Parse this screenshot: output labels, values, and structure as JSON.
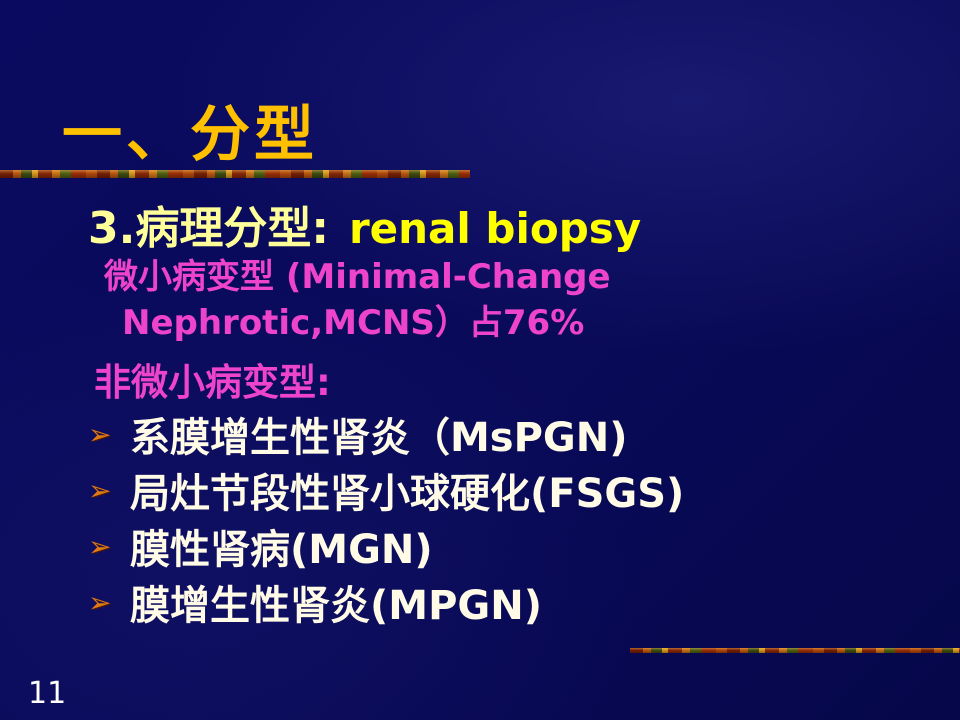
{
  "slide": {
    "title": "一、分型",
    "page_number": "11"
  },
  "heading": {
    "zh": "3.病理分型:",
    "en": "renal biopsy"
  },
  "mcns": {
    "line1": "微小病变型 (Minimal-Change",
    "line2": "Nephrotic,MCNS）占76%"
  },
  "non_mcns_label": "非微小病变型:",
  "bullets": [
    {
      "marker": "➢",
      "label": "系膜增生性肾炎（MsPGN)"
    },
    {
      "marker": "➢",
      "label": "局灶节段性肾小球硬化(FSGS)"
    },
    {
      "marker": "➢",
      "label": "膜性肾病(MGN)"
    },
    {
      "marker": "➢",
      "label": "膜增生性肾炎(MPGN)"
    }
  ],
  "colors": {
    "background": "#0a0a60",
    "title_gold": "#ffc000",
    "heading_zh": "#ffff99",
    "heading_en": "#ffff00",
    "magenta": "#ee44cc",
    "body_text": "#fffbe6",
    "bullet_marker": "#e07818",
    "page_number": "#ffffff"
  }
}
